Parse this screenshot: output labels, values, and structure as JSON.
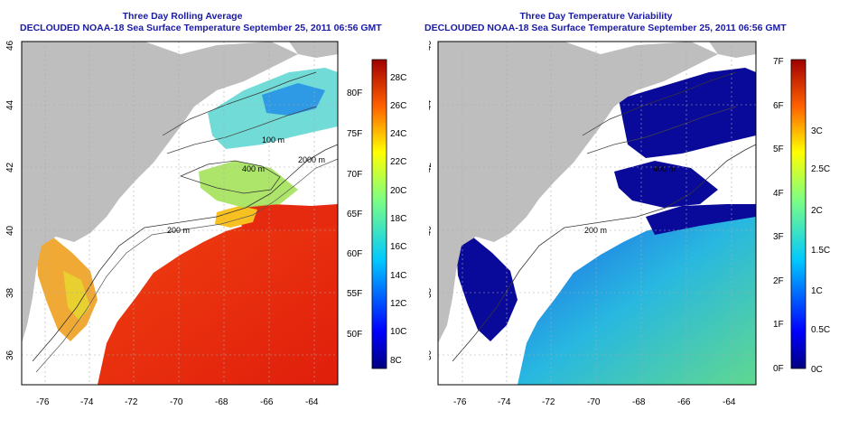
{
  "left": {
    "title_line1": "Three Day Rolling Average",
    "title_line2": "DECLOUDED NOAA-18 Sea Surface Temperature September 25, 2011 06:56 GMT",
    "colorbar_c": [
      "28C",
      "26C",
      "24C",
      "22C",
      "20C",
      "18C",
      "16C",
      "14C",
      "12C",
      "10C",
      "8C"
    ],
    "colorbar_f": [
      "80F",
      "75F",
      "70F",
      "65F",
      "60F",
      "55F",
      "50F"
    ]
  },
  "right": {
    "title_line1": "Three Day Temperature Variability",
    "title_line2": "DECLOUDED NOAA-18 Sea Surface Temperature September 25, 2011 06:56 GMT",
    "colorbar_c": [
      "3C",
      "2.5C",
      "2C",
      "1.5C",
      "1C",
      "0.5C",
      "0C"
    ],
    "colorbar_f": [
      "7F",
      "6F",
      "5F",
      "4F",
      "3F",
      "2F",
      "1F",
      "0F"
    ]
  },
  "axes": {
    "lon_ticks": [
      "-76",
      "-74",
      "-72",
      "-70",
      "-68",
      "-66",
      "-64"
    ],
    "lat_ticks": [
      "36",
      "38",
      "40",
      "42",
      "44",
      "46"
    ]
  },
  "contour_labels": [
    "100 m",
    "200 m",
    "2000 m",
    "400 m",
    "200 m",
    "200 m"
  ],
  "colors": {
    "land": "#bebebe",
    "cloud": "#ffffff",
    "title": "#1a1aa6",
    "warm": "#e8290e",
    "cool": "#0a0a9a"
  }
}
